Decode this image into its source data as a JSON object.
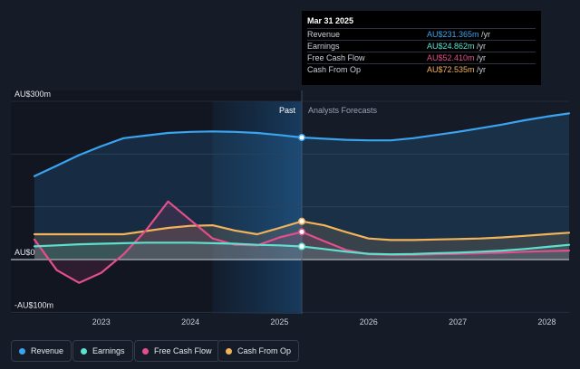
{
  "chart_data": {
    "type": "area",
    "y_axis": {
      "labels": [
        "AU$300m",
        "AU$0",
        "-AU$100m"
      ],
      "ylim": [
        -100,
        300
      ]
    },
    "x_axis": {
      "ticks": [
        "2023",
        "2024",
        "2025",
        "2026",
        "2027",
        "2028"
      ],
      "xlim": [
        2022.25,
        2028.25
      ]
    },
    "divider": {
      "x": 2025.25,
      "past_label": "Past",
      "forecast_label": "Analysts Forecasts"
    },
    "series": [
      {
        "name": "Revenue",
        "color": "#3ba3f0",
        "points": [
          [
            2022.25,
            158
          ],
          [
            2022.5,
            178
          ],
          [
            2022.75,
            198
          ],
          [
            2023.0,
            215
          ],
          [
            2023.25,
            230
          ],
          [
            2023.5,
            235
          ],
          [
            2023.75,
            240
          ],
          [
            2024.0,
            242
          ],
          [
            2024.25,
            243
          ],
          [
            2024.5,
            242
          ],
          [
            2024.75,
            240
          ],
          [
            2025.0,
            236
          ],
          [
            2025.25,
            231.4
          ],
          [
            2025.5,
            229
          ],
          [
            2025.75,
            227
          ],
          [
            2026.0,
            226
          ],
          [
            2026.25,
            226
          ],
          [
            2026.5,
            230
          ],
          [
            2026.75,
            236
          ],
          [
            2027.0,
            242
          ],
          [
            2027.25,
            249
          ],
          [
            2027.5,
            256
          ],
          [
            2027.75,
            264
          ],
          [
            2028.0,
            271
          ],
          [
            2028.25,
            277
          ]
        ]
      },
      {
        "name": "Earnings",
        "color": "#5ee0cf",
        "points": [
          [
            2022.25,
            25
          ],
          [
            2022.5,
            27
          ],
          [
            2022.75,
            29
          ],
          [
            2023.0,
            30
          ],
          [
            2023.25,
            31
          ],
          [
            2023.5,
            32
          ],
          [
            2023.75,
            32
          ],
          [
            2024.0,
            32
          ],
          [
            2024.25,
            31
          ],
          [
            2024.5,
            30
          ],
          [
            2024.75,
            28
          ],
          [
            2025.0,
            27
          ],
          [
            2025.25,
            24.9
          ],
          [
            2025.5,
            20
          ],
          [
            2025.75,
            15
          ],
          [
            2026.0,
            11
          ],
          [
            2026.25,
            10
          ],
          [
            2026.5,
            10.5
          ],
          [
            2026.75,
            12
          ],
          [
            2027.0,
            13
          ],
          [
            2027.25,
            15
          ],
          [
            2027.5,
            17
          ],
          [
            2027.75,
            20
          ],
          [
            2028.0,
            24
          ],
          [
            2028.25,
            28
          ]
        ]
      },
      {
        "name": "Free Cash Flow",
        "color": "#e34f8c",
        "points": [
          [
            2022.25,
            38
          ],
          [
            2022.5,
            -20
          ],
          [
            2022.75,
            -44
          ],
          [
            2023.0,
            -25
          ],
          [
            2023.25,
            10
          ],
          [
            2023.5,
            55
          ],
          [
            2023.75,
            110
          ],
          [
            2024.0,
            75
          ],
          [
            2024.25,
            40
          ],
          [
            2024.5,
            28
          ],
          [
            2024.75,
            27
          ],
          [
            2025.0,
            42
          ],
          [
            2025.25,
            52.4
          ],
          [
            2025.5,
            35
          ],
          [
            2025.75,
            18
          ],
          [
            2026.0,
            10
          ],
          [
            2026.25,
            9
          ],
          [
            2026.5,
            9
          ],
          [
            2026.75,
            10
          ],
          [
            2027.0,
            11
          ],
          [
            2027.25,
            12
          ],
          [
            2027.5,
            13
          ],
          [
            2027.75,
            15
          ],
          [
            2028.0,
            16
          ],
          [
            2028.25,
            17
          ]
        ]
      },
      {
        "name": "Cash From Op",
        "color": "#f2b35a",
        "points": [
          [
            2022.25,
            48
          ],
          [
            2022.5,
            48
          ],
          [
            2022.75,
            48
          ],
          [
            2023.0,
            48
          ],
          [
            2023.25,
            48
          ],
          [
            2023.5,
            54
          ],
          [
            2023.75,
            60
          ],
          [
            2024.0,
            64
          ],
          [
            2024.25,
            65
          ],
          [
            2024.5,
            55
          ],
          [
            2024.75,
            48
          ],
          [
            2025.0,
            60
          ],
          [
            2025.25,
            72.5
          ],
          [
            2025.5,
            65
          ],
          [
            2025.75,
            52
          ],
          [
            2026.0,
            40
          ],
          [
            2026.25,
            37
          ],
          [
            2026.5,
            37
          ],
          [
            2026.75,
            38
          ],
          [
            2027.0,
            39
          ],
          [
            2027.25,
            40
          ],
          [
            2027.5,
            42
          ],
          [
            2027.75,
            45
          ],
          [
            2028.0,
            48
          ],
          [
            2028.25,
            51
          ]
        ]
      }
    ]
  },
  "tooltip": {
    "date": "Mar 31 2025",
    "rows": [
      {
        "label": "Revenue",
        "value": "AU$231.365m",
        "suffix": " /yr",
        "color": "#3ba3f0"
      },
      {
        "label": "Earnings",
        "value": "AU$24.862m",
        "suffix": " /yr",
        "color": "#5ee0cf"
      },
      {
        "label": "Free Cash Flow",
        "value": "AU$52.410m",
        "suffix": " /yr",
        "color": "#e34f8c"
      },
      {
        "label": "Cash From Op",
        "value": "AU$72.535m",
        "suffix": " /yr",
        "color": "#f2b35a"
      }
    ]
  },
  "legend": [
    {
      "label": "Revenue",
      "color": "#3ba3f0"
    },
    {
      "label": "Earnings",
      "color": "#5ee0cf"
    },
    {
      "label": "Free Cash Flow",
      "color": "#e34f8c"
    },
    {
      "label": "Cash From Op",
      "color": "#f2b35a"
    }
  ]
}
